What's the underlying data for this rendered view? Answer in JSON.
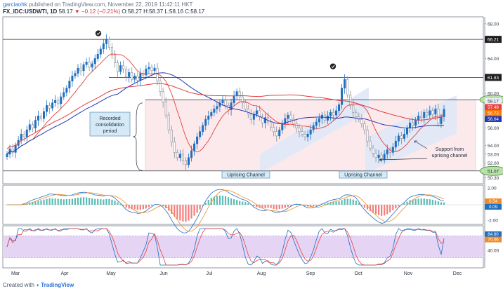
{
  "header": {
    "author": "garciaohk",
    "published": "published on TradingView.com, November 22, 2019 11:42:11 HKT",
    "symbol": "FX_IDC:USDWTI, 1D",
    "last": "58.17",
    "arrow": "▼",
    "change": "−0.12 (−0.21%)",
    "ohlc": "O:58.27 H:58.37 L:58.16 C:58.17"
  },
  "footer": {
    "created_with": "Created with",
    "brand": "TradingView"
  },
  "chart_data": [
    {
      "type": "candlestick",
      "panel": "price",
      "symbol": "USDWTI",
      "interval": "1D",
      "y_ticks": [
        "68.00",
        "64.00",
        "60.00",
        "58.00",
        "56.00",
        "54.00",
        "53.00",
        "52.00",
        "50.30"
      ],
      "ylim": [
        49.6,
        68.8
      ],
      "x_labels": [
        "Mar",
        "Apr",
        "May",
        "Jun",
        "Jul",
        "Aug",
        "Sep",
        "Oct",
        "Nov",
        "Dec"
      ],
      "horizontal_levels": [
        {
          "value": 66.21,
          "label": "66.21"
        },
        {
          "value": 61.83,
          "label": "61.83"
        },
        {
          "value": 59.26,
          "label": "59.26"
        },
        {
          "value": 51.07,
          "label": "51.07"
        }
      ],
      "price_markers": [
        {
          "label": "58.17",
          "color": "#e8eef8"
        },
        {
          "label": "57.48",
          "color": "#e8403b"
        },
        {
          "label": "56.73",
          "color": "#ff7a00"
        },
        {
          "label": "56.04",
          "color": "#2239b4"
        }
      ],
      "closes": [
        53.0,
        53.6,
        53.2,
        54.0,
        54.6,
        55.3,
        55.0,
        55.8,
        56.4,
        56.0,
        56.9,
        57.4,
        57.1,
        57.9,
        58.6,
        58.3,
        58.9,
        59.2,
        58.8,
        59.6,
        60.1,
        60.6,
        61.4,
        62.0,
        62.3,
        62.9,
        62.6,
        63.3,
        63.6,
        63.0,
        63.4,
        64.0,
        64.5,
        65.1,
        65.7,
        66.2,
        65.3,
        64.4,
        63.5,
        62.5,
        63.2,
        62.8,
        61.9,
        62.4,
        61.6,
        62.0,
        61.5,
        62.3,
        62.1,
        62.8,
        63.0,
        62.6,
        62.9,
        61.4,
        60.2,
        59.0,
        57.5,
        55.8,
        54.4,
        53.2,
        52.6,
        53.0,
        52.3,
        51.8,
        52.6,
        53.4,
        54.2,
        55.0,
        55.6,
        56.3,
        57.0,
        57.4,
        57.8,
        58.2,
        58.5,
        58.9,
        59.2,
        58.6,
        58.1,
        58.9,
        59.7,
        60.2,
        59.6,
        58.9,
        58.2,
        57.6,
        57.0,
        57.6,
        58.0,
        57.3,
        56.6,
        57.2,
        56.7,
        56.1,
        55.6,
        55.1,
        55.8,
        56.5,
        57.1,
        57.5,
        57.0,
        56.5,
        56.0,
        55.6,
        55.3,
        55.0,
        55.3,
        55.8,
        56.3,
        56.7,
        57.1,
        57.5,
        56.9,
        57.4,
        57.8,
        57.5,
        58.0,
        58.7,
        60.6,
        61.6,
        59.8,
        58.6,
        57.8,
        57.3,
        57.0,
        56.5,
        55.8,
        54.5,
        53.7,
        53.1,
        52.6,
        52.9,
        52.4,
        53.0,
        53.5,
        53.2,
        53.8,
        54.5,
        55.1,
        54.8,
        55.3,
        56.0,
        56.6,
        56.3,
        56.9,
        57.4,
        57.2,
        57.8,
        57.5,
        58.0,
        57.6,
        58.2,
        56.5,
        57.3,
        58.17
      ]
    },
    {
      "type": "histogram",
      "panel": "macd",
      "y_ticks": [
        "2.00",
        "0.00",
        "-2.00"
      ],
      "markers": [
        "0.54",
        "0.09"
      ]
    },
    {
      "type": "line",
      "panel": "stochastic",
      "y_ticks": [
        "80.00",
        "40.00"
      ],
      "markers": [
        "84.60",
        "70.06"
      ],
      "band": [
        20,
        80
      ]
    }
  ],
  "annotations": {
    "consolidation": "Recorded\nconsolidation\nperiod",
    "channel1": "Uprising Channel",
    "channel2": "Uprising Channel",
    "support": "Support from\nuprising channel"
  }
}
